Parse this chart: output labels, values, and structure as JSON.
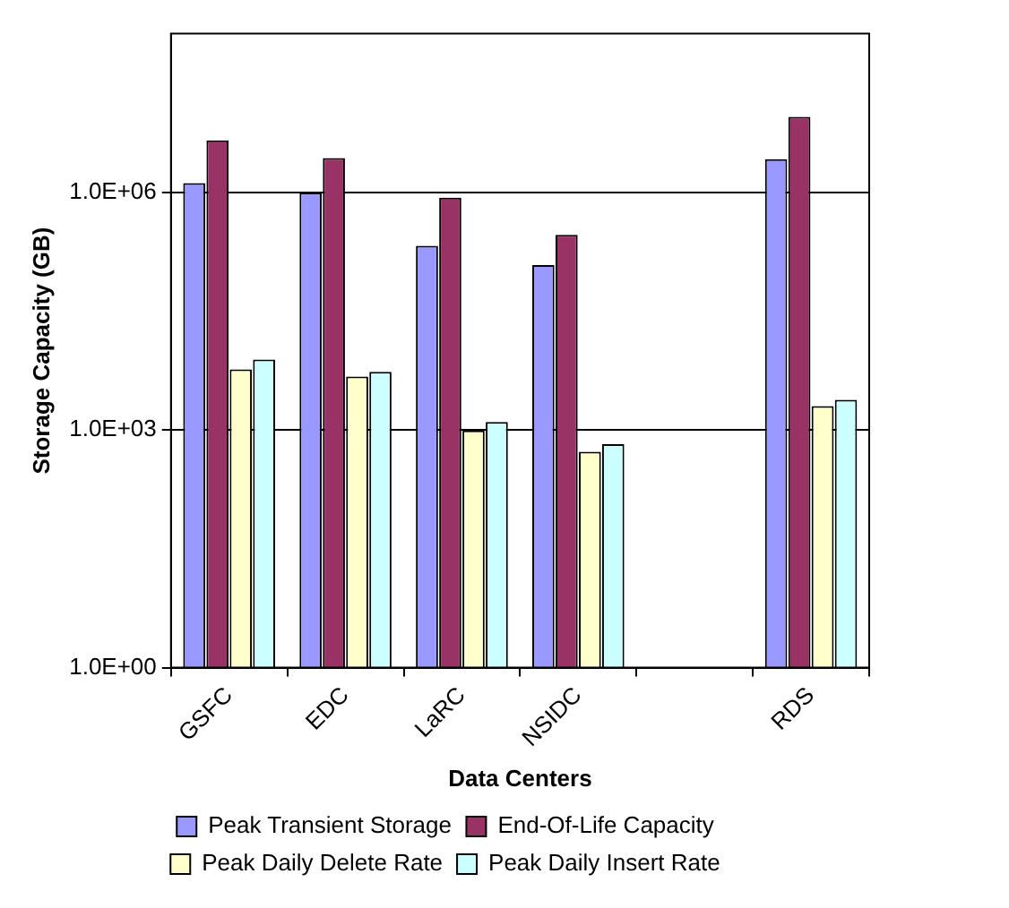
{
  "chart_data": {
    "type": "bar",
    "xlabel": "Data Centers",
    "ylabel": "Storage Capacity (GB)",
    "categories": [
      "GSFC",
      "EDC",
      "LaRC",
      "NSIDC",
      null,
      "RDS"
    ],
    "series": [
      {
        "name": "Peak Transient Storage",
        "color": "#9999ff",
        "values": [
          1300000,
          980000,
          210000,
          120000,
          null,
          2600000
        ]
      },
      {
        "name": "End-Of-Life Capacity",
        "color": "#993366",
        "values": [
          4500000,
          2700000,
          850000,
          290000,
          null,
          8900000
        ]
      },
      {
        "name": "Peak Daily Delete Rate",
        "color": "#ffffcc",
        "values": [
          5800,
          4700,
          980,
          530,
          null,
          2000
        ]
      },
      {
        "name": "Peak Daily Insert Rate",
        "color": "#ccffff",
        "values": [
          7700,
          5400,
          1260,
          660,
          null,
          2400
        ]
      }
    ],
    "log": "y",
    "ylim": [
      1,
      100000000
    ],
    "yticks": [
      {
        "value": 1,
        "label": "1.0E+00"
      },
      {
        "value": 1000,
        "label": "1.0E+03"
      },
      {
        "value": 1000000,
        "label": "1.0E+06"
      }
    ],
    "grid": "y",
    "legend": "bottom"
  }
}
